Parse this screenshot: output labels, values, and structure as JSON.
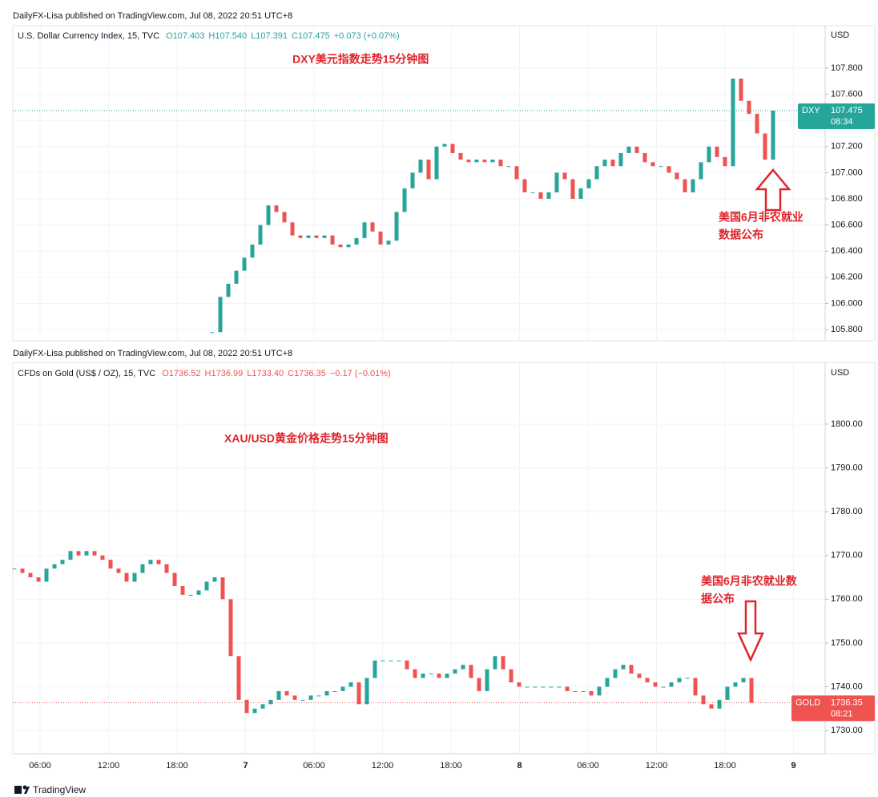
{
  "chart_data": [
    {
      "type": "candlestick",
      "published": "DailyFX-Lisa published on TradingView.com, Jul 08, 2022 20:51 UTC+8",
      "symbol": "U.S. Dollar Currency Index, 15, TVC",
      "ohlc": [
        "O107.403",
        "H107.540",
        "L107.391",
        "C107.475",
        "+0.073 (+0.07%)"
      ],
      "ohlc_color": "#26a69a",
      "currency": "USD",
      "title": "DXY美元指数走势15分钟图",
      "annotation": [
        "美国6月非农就业",
        "数据公布"
      ],
      "ylim": [
        105.714,
        108.125
      ],
      "yticks": [
        {
          "value": 105.8,
          "label": "105.800"
        },
        {
          "value": 106.0,
          "label": "106.000"
        },
        {
          "value": 106.2,
          "label": "106.200"
        },
        {
          "value": 106.4,
          "label": "106.400"
        },
        {
          "value": 106.6,
          "label": "106.600"
        },
        {
          "value": 106.8,
          "label": "106.800"
        },
        {
          "value": 107.0,
          "label": "107.000"
        },
        {
          "value": 107.2,
          "label": "107.200"
        },
        {
          "value": 107.4,
          "label": "107.400"
        },
        {
          "value": 107.6,
          "label": "107.600"
        },
        {
          "value": 107.8,
          "label": "107.800"
        }
      ],
      "up_color": "#26a69a",
      "down_color": "#ef5350",
      "values": [
        105.78,
        106.05,
        106.15,
        106.25,
        106.35,
        106.45,
        106.6,
        106.75,
        106.7,
        106.62,
        106.52,
        106.5,
        106.52,
        106.5,
        106.52,
        106.45,
        106.43,
        106.45,
        106.5,
        106.62,
        106.55,
        106.45,
        106.48,
        106.7,
        106.88,
        107.0,
        107.1,
        106.95,
        107.2,
        107.22,
        107.15,
        107.1,
        107.08,
        107.1,
        107.08,
        107.1,
        107.05,
        107.05,
        106.95,
        106.85,
        106.85,
        106.8,
        106.85,
        107.0,
        106.95,
        106.8,
        106.88,
        106.95,
        107.05,
        107.1,
        107.05,
        107.15,
        107.2,
        107.15,
        107.08,
        107.05,
        107.05,
        107.0,
        106.95,
        106.85,
        106.95,
        107.08,
        107.2,
        107.12,
        107.05,
        107.72,
        107.55,
        107.45,
        107.3,
        107.1,
        107.475
      ],
      "tag": "DXY",
      "last": 107.475,
      "countdown": "08:34",
      "tag_color": "#26a69a"
    },
    {
      "type": "candlestick",
      "published": "DailyFX-Lisa published on TradingView.com, Jul 08, 2022 20:51 UTC+8",
      "symbol": "CFDs on Gold (US$ / OZ), 15, TVC",
      "ohlc": [
        "O1736.52",
        "H1736.99",
        "L1733.40",
        "C1736.35",
        "−0.17 (−0.01%)"
      ],
      "ohlc_color": "#ef5350",
      "currency": "USD",
      "title": "XAU/USD黄金价格走势15分钟图",
      "annotation": [
        "美国6月非农就业数",
        "据公布"
      ],
      "ylim": [
        1724.7,
        1814.1
      ],
      "yticks": [
        {
          "value": 1730,
          "label": "1730.00"
        },
        {
          "value": 1740,
          "label": "1740.00"
        },
        {
          "value": 1750,
          "label": "1750.00"
        },
        {
          "value": 1760,
          "label": "1760.00"
        },
        {
          "value": 1770,
          "label": "1770.00"
        },
        {
          "value": 1780,
          "label": "1780.00"
        },
        {
          "value": 1790,
          "label": "1790.00"
        },
        {
          "value": 1800,
          "label": "1800.00"
        }
      ],
      "xtick_labels": [
        "06:00",
        "12:00",
        "18:00",
        "7",
        "06:00",
        "12:00",
        "18:00",
        "8",
        "06:00",
        "12:00",
        "18:00",
        "9"
      ],
      "up_color": "#26a69a",
      "down_color": "#ef5350",
      "values": [
        1767,
        1766,
        1765,
        1764,
        1767,
        1768,
        1769,
        1771,
        1770,
        1771,
        1770,
        1769,
        1767,
        1766,
        1764,
        1766,
        1768,
        1769,
        1768,
        1766,
        1763,
        1761,
        1761,
        1762,
        1764,
        1765,
        1760,
        1747,
        1737,
        1734,
        1735,
        1736,
        1737,
        1739,
        1738,
        1737,
        1737,
        1738,
        1738,
        1739,
        1739,
        1740,
        1741,
        1736,
        1742,
        1746,
        1746,
        1746,
        1746,
        1744,
        1742,
        1743,
        1743,
        1742,
        1743,
        1744,
        1745,
        1742,
        1739,
        1744,
        1747,
        1744,
        1741,
        1740,
        1740,
        1740,
        1740,
        1740,
        1740,
        1739,
        1739,
        1739,
        1738,
        1740,
        1742,
        1744,
        1745,
        1743,
        1742,
        1741,
        1740,
        1740,
        1741,
        1742,
        1742,
        1738,
        1736,
        1735,
        1737,
        1740,
        1741,
        1742,
        1736.35
      ],
      "tag": "GOLD",
      "last": 1736.35,
      "countdown": "08:21",
      "tag_color": "#ef5350"
    }
  ],
  "footer": "TradingView"
}
